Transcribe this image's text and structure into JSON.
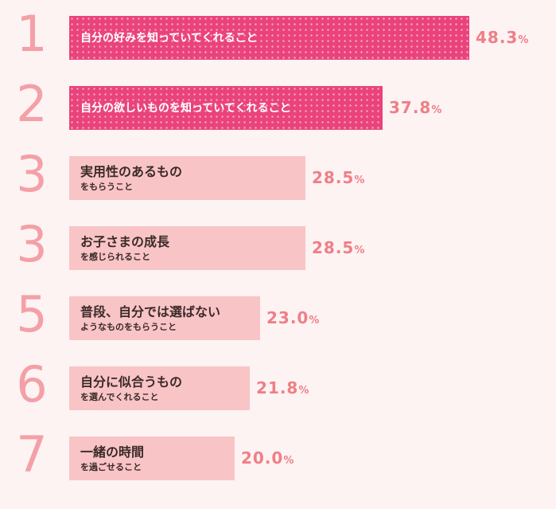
{
  "chart_data": {
    "type": "bar",
    "orientation": "horizontal",
    "title": "",
    "xlabel": "",
    "ylabel": "",
    "unit": "%",
    "xlim": [
      0,
      48.3
    ],
    "highlight_color": "#ea437c",
    "bar_color": "#f9c4c6",
    "value_color": "#ef7f86",
    "rank_color": "#f4a0a7",
    "items": [
      {
        "rank": "1",
        "line1": "自分の好みを知っていてくれること",
        "line2": "",
        "value": 48.3,
        "highlight": true
      },
      {
        "rank": "2",
        "line1": "自分の欲しいものを知っていてくれること",
        "line2": "",
        "value": 37.8,
        "highlight": true
      },
      {
        "rank": "3",
        "line1": "実用性のあるもの",
        "line2": "をもらうこと",
        "value": 28.5,
        "highlight": false
      },
      {
        "rank": "3",
        "line1": "お子さまの成長",
        "line2": "を感じられること",
        "value": 28.5,
        "highlight": false
      },
      {
        "rank": "5",
        "line1": "普段、自分では選ばない",
        "line2": "ようなものをもらうこと",
        "value": 23.0,
        "highlight": false
      },
      {
        "rank": "6",
        "line1": "自分に似合うもの",
        "line2": "を選んでくれること",
        "value": 21.8,
        "highlight": false
      },
      {
        "rank": "7",
        "line1": "一緒の時間",
        "line2": "を過ごせること",
        "value": 20.0,
        "highlight": false
      }
    ]
  }
}
